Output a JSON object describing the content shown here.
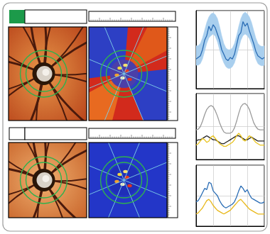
{
  "chart_data": [
    {
      "type": "line",
      "x": [
        0,
        1,
        2,
        3,
        4,
        5,
        6,
        7,
        8,
        9,
        10,
        11,
        12,
        13,
        14,
        15,
        16,
        17,
        18,
        19,
        20,
        21,
        22,
        23,
        24,
        25,
        26,
        27,
        28,
        29,
        30,
        31,
        32
      ],
      "xlim": [
        0,
        32
      ],
      "xticks": [
        0,
        8,
        16,
        24,
        32
      ],
      "ylim": [
        0,
        100
      ],
      "yticks": [
        0,
        50,
        100
      ],
      "grid": true,
      "tick_labels": false,
      "series": [
        {
          "type": "band",
          "color": "#a9cfee",
          "lower": [
            30,
            30,
            32,
            38,
            48,
            58,
            65,
            68,
            70,
            67,
            60,
            50,
            40,
            33,
            28,
            26,
            26,
            28,
            33,
            42,
            52,
            62,
            68,
            70,
            68,
            64,
            57,
            48,
            38,
            32,
            30,
            29,
            30
          ],
          "upper": [
            55,
            55,
            58,
            65,
            75,
            85,
            92,
            96,
            97,
            95,
            90,
            80,
            68,
            58,
            52,
            50,
            50,
            52,
            58,
            68,
            80,
            90,
            96,
            98,
            96,
            92,
            85,
            75,
            65,
            58,
            55,
            54,
            55
          ]
        },
        {
          "type": "line",
          "color": "#2a6db5",
          "values": [
            38,
            40,
            42,
            50,
            62,
            68,
            80,
            74,
            82,
            78,
            70,
            62,
            50,
            44,
            38,
            36,
            40,
            38,
            44,
            56,
            68,
            72,
            86,
            80,
            84,
            74,
            66,
            58,
            48,
            42,
            40,
            38,
            40
          ]
        }
      ]
    },
    {
      "type": "line",
      "x": [
        0,
        1,
        2,
        3,
        4,
        5,
        6,
        7,
        8,
        9,
        10,
        11,
        12,
        13,
        14,
        15,
        16,
        17,
        18,
        19,
        20,
        21,
        22,
        23,
        24,
        25,
        26,
        27,
        28,
        29,
        30,
        31,
        32
      ],
      "xlim": [
        0,
        32
      ],
      "xticks": [
        0,
        8,
        16,
        24,
        32
      ],
      "ylim": [
        0,
        100
      ],
      "yticks": [
        0,
        50,
        100
      ],
      "grid": true,
      "tick_labels": false,
      "series": [
        {
          "type": "line",
          "color": "#9a9a9a",
          "values": [
            45,
            46,
            50,
            58,
            68,
            76,
            80,
            82,
            80,
            74,
            66,
            56,
            48,
            42,
            40,
            40,
            40,
            42,
            48,
            58,
            70,
            80,
            84,
            85,
            82,
            76,
            66,
            56,
            50,
            46,
            45,
            45,
            45
          ]
        },
        {
          "type": "line",
          "color": "#222222",
          "values": [
            28,
            30,
            30,
            32,
            34,
            36,
            34,
            32,
            30,
            30,
            28,
            26,
            24,
            24,
            26,
            28,
            30,
            32,
            34,
            36,
            36,
            34,
            32,
            30,
            30,
            32,
            34,
            32,
            30,
            28,
            28,
            28,
            28
          ]
        },
        {
          "type": "line",
          "color": "#e8c21a",
          "values": [
            22,
            24,
            28,
            32,
            30,
            26,
            28,
            34,
            36,
            32,
            28,
            24,
            22,
            20,
            20,
            22,
            24,
            26,
            30,
            36,
            40,
            36,
            30,
            28,
            32,
            36,
            34,
            30,
            26,
            24,
            22,
            22,
            22
          ]
        }
      ]
    },
    {
      "type": "line",
      "x": [
        0,
        1,
        2,
        3,
        4,
        5,
        6,
        7,
        8,
        9,
        10,
        11,
        12,
        13,
        14,
        15,
        16,
        17,
        18,
        19,
        20,
        21,
        22,
        23,
        24,
        25,
        26,
        27,
        28,
        29,
        30,
        31,
        32
      ],
      "xlim": [
        0,
        32
      ],
      "xticks": [
        0,
        8,
        16,
        24,
        32
      ],
      "ylim": [
        0,
        100
      ],
      "yticks": [
        0,
        50,
        100
      ],
      "grid": true,
      "tick_labels": false,
      "series": [
        {
          "type": "line",
          "color": "#2a6db5",
          "values": [
            40,
            42,
            48,
            55,
            62,
            60,
            72,
            70,
            58,
            54,
            50,
            42,
            36,
            32,
            30,
            32,
            34,
            36,
            40,
            48,
            58,
            66,
            62,
            56,
            60,
            52,
            46,
            44,
            42,
            40,
            38,
            38,
            40
          ]
        },
        {
          "type": "line",
          "color": "#e8b81a",
          "values": [
            20,
            22,
            26,
            30,
            36,
            42,
            44,
            40,
            34,
            30,
            26,
            24,
            22,
            20,
            22,
            24,
            26,
            30,
            34,
            38,
            42,
            44,
            40,
            36,
            32,
            28,
            26,
            24,
            22,
            20,
            20,
            20,
            20
          ]
        }
      ]
    }
  ]
}
